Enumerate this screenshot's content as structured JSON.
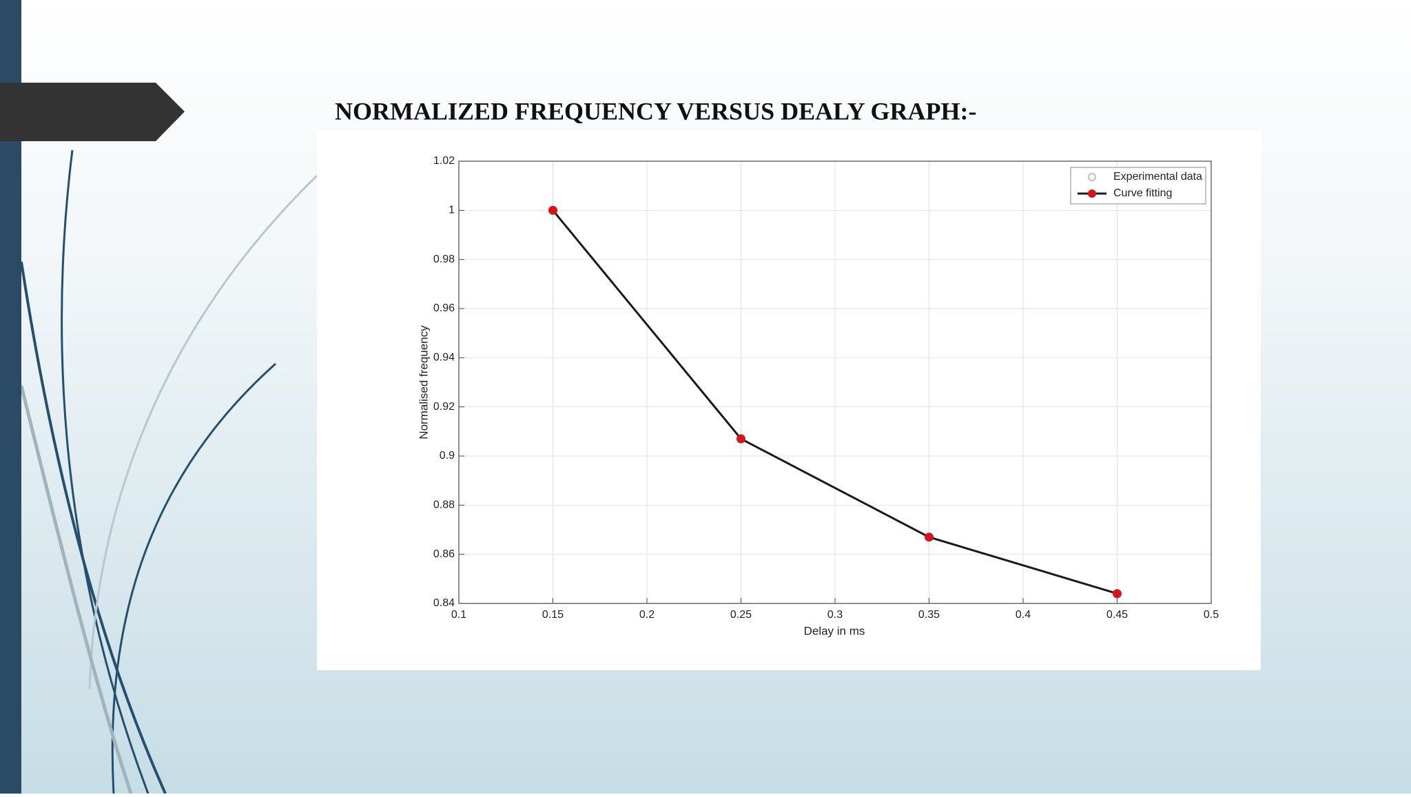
{
  "chart_data": {
    "type": "line",
    "title": "NORMALIZED FREQUENCY VERSUS DEALY GRAPH:-",
    "x_label": "Delay in ms",
    "y_label": "Normalised frequency",
    "x": [
      0.15,
      0.25,
      0.35,
      0.45
    ],
    "series": [
      {
        "name": "Experimental data",
        "color": "#b0b0b0",
        "values": [
          1.0,
          0.907,
          0.867,
          0.844
        ]
      },
      {
        "name": "Curve fitting",
        "color": "#1a1a1a",
        "marker_color": "#d7141a",
        "values": [
          1.0,
          0.907,
          0.867,
          0.844
        ]
      }
    ],
    "xlim": [
      0.1,
      0.5
    ],
    "xticks": [
      0.1,
      0.15,
      0.2,
      0.25,
      0.3,
      0.35,
      0.4,
      0.45,
      0.5
    ],
    "ylim": [
      0.84,
      1.02
    ],
    "yticks": [
      0.84,
      0.86,
      0.88,
      0.9,
      0.92,
      0.94,
      0.96,
      0.98,
      1,
      1.02
    ],
    "grid": true,
    "legend": "upper right"
  }
}
